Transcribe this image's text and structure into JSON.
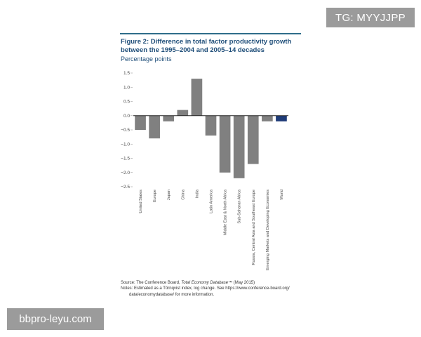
{
  "watermarks": {
    "top_right": "TG: MYYJJPP",
    "bottom_left": "bbpro-leyu.com"
  },
  "figure": {
    "title": "Figure 2: Difference in total factor productivity growth between the 1995–2004 and 2005–14 decades",
    "subtitle": "Percentage points",
    "source_prefix": "Source: The Conference Board, ",
    "source_italic": "Total Economy Database",
    "source_suffix": "™ (May 2015)",
    "notes_line1": "Notes: Estimated as a Törnqvist index, log change. See https://www.conference-board.org/",
    "notes_line2": "data/economydatabase/ for more information."
  },
  "chart_data": {
    "type": "bar",
    "title": "Figure 2: Difference in total factor productivity growth between the 1995–2004 and 2005–14 decades",
    "ylabel": "Percentage points",
    "xlabel": "",
    "ylim": [
      -2.5,
      1.5
    ],
    "yticks": [
      1.5,
      1.0,
      0.5,
      0.0,
      -0.5,
      -1.0,
      -1.5,
      -2.0,
      -2.5
    ],
    "ytick_labels": [
      "1.5",
      "1.0",
      "0.5",
      "0.0",
      "−0.5",
      "−1.0",
      "−1.5",
      "−2.0",
      "−2.5"
    ],
    "categories": [
      "United States",
      "Europe",
      "Japan",
      "China",
      "India",
      "Latin America",
      "Middle East & North Africa",
      "Sub-Saharan Africa",
      "Russia, Central Asia and Southeast Europe",
      "Emerging Markets and Developing Economies",
      "World"
    ],
    "values": [
      -0.5,
      -0.8,
      -0.2,
      0.2,
      1.3,
      -0.7,
      -2.0,
      -2.2,
      -1.7,
      -0.2,
      -0.2
    ],
    "colors": {
      "default": "#808080",
      "highlight": "#1f3c78",
      "axis": "#222222",
      "tick_text": "#444444"
    },
    "highlight_category": "World",
    "grid": false
  }
}
